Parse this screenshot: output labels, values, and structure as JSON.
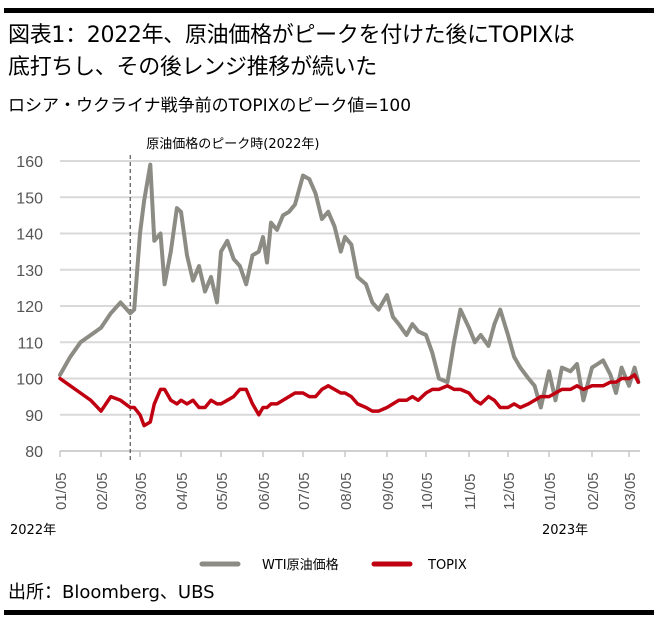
{
  "header": {
    "title_line1": "図表1：2022年、原油価格がピークを付けた後にTOPIXは",
    "title_line2": "底打ちし、その後レンジ推移が続いた",
    "subtitle": "ロシア・ウクライナ戦争前のTOPIXのピーク値=100"
  },
  "footer": {
    "source": "出所：Bloomberg、UBS"
  },
  "chart_data": {
    "type": "line",
    "title": "図表1：2022年、原油価格がピークを付けた後にTOPIXは底打ちし、その後レンジ推移が続いた",
    "subtitle": "ロシア・ウクライナ戦争前のTOPIXのピーク値=100",
    "xlabel": "",
    "ylabel": "",
    "ylim": [
      80,
      160
    ],
    "yticks": [
      80,
      90,
      100,
      110,
      120,
      130,
      140,
      150,
      160
    ],
    "grid": true,
    "x_tick_labels": [
      "01/05",
      "02/05",
      "03/05",
      "04/05",
      "05/05",
      "06/05",
      "07/05",
      "08/05",
      "09/05",
      "10/05",
      "11/05",
      "12/05",
      "01/05",
      "02/05",
      "03/05"
    ],
    "year_labels": [
      {
        "label": "2022年",
        "at_tick": 0
      },
      {
        "label": "2023年",
        "at_tick": 12
      }
    ],
    "annotation": {
      "label": "原油価格のピーク時(2022年)",
      "x_month_index": 1.75,
      "style": "dashed-vertical"
    },
    "legend": {
      "placement": "bottom-center",
      "entries": [
        {
          "name": "WTI原油価格",
          "color": "#8c8c84"
        },
        {
          "name": "TOPIX",
          "color": "#c00010"
        }
      ]
    },
    "x_unit": "months since 2022-01-05",
    "x": [
      0,
      0.25,
      0.5,
      0.75,
      1,
      1.25,
      1.5,
      1.75,
      1.85,
      2,
      2.1,
      2.25,
      2.35,
      2.5,
      2.6,
      2.75,
      2.9,
      3,
      3.15,
      3.3,
      3.45,
      3.6,
      3.75,
      3.9,
      4,
      4.15,
      4.3,
      4.45,
      4.6,
      4.75,
      4.9,
      5,
      5.1,
      5.2,
      5.35,
      5.5,
      5.65,
      5.8,
      6,
      6.15,
      6.3,
      6.45,
      6.6,
      6.75,
      6.9,
      7,
      7.15,
      7.3,
      7.5,
      7.65,
      7.8,
      8,
      8.15,
      8.3,
      8.5,
      8.65,
      8.8,
      9,
      9.15,
      9.3,
      9.5,
      9.65,
      9.8,
      10,
      10.15,
      10.3,
      10.5,
      10.65,
      10.8,
      11,
      11.15,
      11.3,
      11.5,
      11.65,
      11.8,
      12,
      12.15,
      12.3,
      12.5,
      12.65,
      12.8,
      13,
      13.15,
      13.3,
      13.5,
      13.65,
      13.8,
      14,
      14.15,
      14.25
    ],
    "series": [
      {
        "name": "WTI原油価格",
        "color": "#8c8c84",
        "values": [
          101,
          106,
          110,
          112,
          114,
          118,
          121,
          118,
          119,
          140,
          149,
          159,
          138,
          140,
          126,
          135,
          147,
          146,
          134,
          127,
          131,
          124,
          128,
          121,
          135,
          138,
          133,
          131,
          126,
          134,
          135,
          139,
          132,
          143,
          141,
          145,
          146,
          148,
          156,
          155,
          151,
          144,
          146,
          142,
          135,
          139,
          137,
          128,
          126,
          121,
          119,
          123,
          117,
          115,
          112,
          115,
          113,
          112,
          107,
          100,
          99,
          110,
          119,
          114,
          110,
          112,
          109,
          115,
          119,
          112,
          106,
          103,
          100,
          98,
          92,
          102,
          94,
          103,
          102,
          104,
          94,
          103,
          104,
          105,
          101,
          96,
          103,
          98,
          103,
          99
        ],
        "x_indices_note": "values aligned to x"
      },
      {
        "name": "TOPIX",
        "color": "#c00010",
        "values": [
          100,
          98,
          96,
          94,
          91,
          95,
          94,
          92,
          92,
          90,
          87,
          88,
          93,
          97,
          97,
          94,
          93,
          94,
          93,
          94,
          92,
          92,
          94,
          93,
          93,
          94,
          95,
          97,
          97,
          93,
          90,
          92,
          92,
          93,
          93,
          94,
          95,
          96,
          96,
          95,
          95,
          97,
          98,
          97,
          96,
          96,
          95,
          93,
          92,
          91,
          91,
          92,
          93,
          94,
          94,
          95,
          94,
          96,
          97,
          97,
          98,
          97,
          97,
          96,
          94,
          93,
          95,
          94,
          92,
          92,
          93,
          92,
          93,
          94,
          95,
          95,
          96,
          97,
          97,
          98,
          97,
          98,
          98,
          98,
          99,
          99,
          100,
          100,
          101,
          99
        ]
      }
    ]
  }
}
